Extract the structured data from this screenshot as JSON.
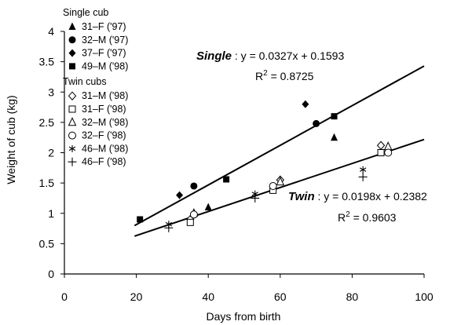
{
  "chart_data": {
    "type": "scatter",
    "xlabel": "Days from birth",
    "ylabel": "Weight of cub (kg)",
    "xlim": [
      0,
      100
    ],
    "ylim": [
      0,
      4
    ],
    "xticks": [
      "0",
      "20",
      "40",
      "60",
      "80",
      "100"
    ],
    "yticks": [
      "0",
      "0.5",
      "1",
      "1.5",
      "2",
      "2.5",
      "3",
      "3.5",
      "4"
    ],
    "grid": false,
    "legend": {
      "position": "top-left",
      "groups": [
        {
          "title": "Single cub",
          "entries": [
            {
              "label": "31–F ('97)",
              "marker": "triangle-filled"
            },
            {
              "label": "32–M ('97)",
              "marker": "circle-filled"
            },
            {
              "label": "37–F ('97)",
              "marker": "diamond-filled"
            },
            {
              "label": "49–M ('98)",
              "marker": "square-filled"
            }
          ]
        },
        {
          "title": "Twin cubs",
          "entries": [
            {
              "label": "31–M ('98)",
              "marker": "diamond-open"
            },
            {
              "label": "31–F ('98)",
              "marker": "square-open"
            },
            {
              "label": "32–M ('98)",
              "marker": "triangle-open"
            },
            {
              "label": "32–F ('98)",
              "marker": "circle-open"
            },
            {
              "label": "46–M ('98)",
              "marker": "asterisk"
            },
            {
              "label": "46–F ('98)",
              "marker": "plus"
            }
          ]
        }
      ]
    },
    "series": [
      {
        "name": "31–F ('97)",
        "group": "single",
        "marker": "triangle-filled",
        "points": [
          [
            40,
            1.1
          ],
          [
            75,
            2.25
          ]
        ]
      },
      {
        "name": "32–M ('97)",
        "group": "single",
        "marker": "circle-filled",
        "points": [
          [
            36,
            1.45
          ],
          [
            70,
            2.48
          ]
        ]
      },
      {
        "name": "37–F ('97)",
        "group": "single",
        "marker": "diamond-filled",
        "points": [
          [
            32,
            1.3
          ],
          [
            67,
            2.8
          ]
        ]
      },
      {
        "name": "49–M ('98)",
        "group": "single",
        "marker": "square-filled",
        "points": [
          [
            21,
            0.9
          ],
          [
            45,
            1.56
          ],
          [
            75,
            2.6
          ]
        ]
      },
      {
        "name": "31–M ('98)",
        "group": "twin",
        "marker": "diamond-open",
        "points": [
          [
            35,
            0.9
          ],
          [
            60,
            1.55
          ],
          [
            88,
            2.12
          ]
        ]
      },
      {
        "name": "31–F ('98)",
        "group": "twin",
        "marker": "square-open",
        "points": [
          [
            35,
            0.85
          ],
          [
            58,
            1.38
          ],
          [
            88,
            2.0
          ]
        ]
      },
      {
        "name": "32–M ('98)",
        "group": "twin",
        "marker": "triangle-open",
        "points": [
          [
            36,
            1.0
          ],
          [
            60,
            1.52
          ],
          [
            90,
            2.1
          ]
        ]
      },
      {
        "name": "32–F ('98)",
        "group": "twin",
        "marker": "circle-open",
        "points": [
          [
            36,
            0.98
          ],
          [
            58,
            1.45
          ],
          [
            90,
            2.0
          ]
        ]
      },
      {
        "name": "46–M ('98)",
        "group": "twin",
        "marker": "asterisk",
        "points": [
          [
            29,
            0.82
          ],
          [
            53,
            1.32
          ],
          [
            83,
            1.72
          ]
        ]
      },
      {
        "name": "46–F ('98)",
        "group": "twin",
        "marker": "plus",
        "points": [
          [
            29,
            0.76
          ],
          [
            53,
            1.25
          ],
          [
            83,
            1.6
          ]
        ]
      }
    ],
    "trendlines": [
      {
        "name": "Single",
        "slope": 0.0327,
        "intercept": 0.1593,
        "x_range": [
          19.5,
          100
        ],
        "label_bold": "Single",
        "label_eq": " : y = 0.0327x + 0.1593",
        "label_r2_prefix": "R",
        "label_r2_sup": "2",
        "label_r2_value": " = 0.8725"
      },
      {
        "name": "Twin",
        "slope": 0.0198,
        "intercept": 0.2382,
        "x_range": [
          19.5,
          100
        ],
        "label_bold": "Twin",
        "label_eq": " : y = 0.0198x + 0.2382",
        "label_r2_prefix": "R",
        "label_r2_sup": "2",
        "label_r2_value": " = 0.9603"
      }
    ]
  }
}
